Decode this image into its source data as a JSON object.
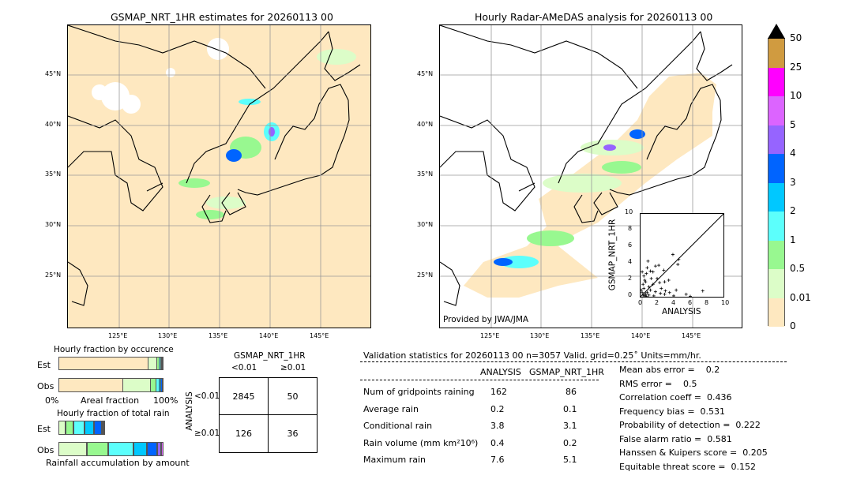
{
  "left_map": {
    "title": "GSMAP_NRT_1HR estimates for 20260113 00",
    "lat_labels": [
      "45°N",
      "40°N",
      "35°N",
      "30°N",
      "25°N"
    ],
    "lon_labels": [
      "125°E",
      "130°E",
      "135°E",
      "140°E",
      "145°E"
    ]
  },
  "right_map": {
    "title": "Hourly Radar-AMeDAS analysis for 20260113 00",
    "lat_labels": [
      "45°N",
      "40°N",
      "35°N",
      "30°N",
      "25°N"
    ],
    "lon_labels": [
      "125°E",
      "130°E",
      "135°E",
      "140°E",
      "145°E"
    ],
    "credit": "Provided by JWA/JMA"
  },
  "colorbar": {
    "labels": [
      "0",
      "0.01",
      "0.5",
      "1",
      "2",
      "3",
      "4",
      "5",
      "10",
      "25",
      "50"
    ],
    "colors": [
      "#fee8c0",
      "#dcfdc8",
      "#98f890",
      "#5cfffc",
      "#00c8ff",
      "#0064ff",
      "#9664ff",
      "#dc64ff",
      "#ff00ff",
      "#d09b40"
    ]
  },
  "chart_data": [
    {
      "type": "scatter",
      "xlabel": "ANALYSIS",
      "ylabel": "GSMAP_NRT_1HR",
      "xlim": [
        0,
        10
      ],
      "ylim": [
        0,
        10
      ],
      "xticks": [
        "0",
        "2",
        "4",
        "6",
        "8",
        "10"
      ],
      "yticks": [
        "0",
        "2",
        "4",
        "6",
        "8",
        "10"
      ],
      "points": [
        [
          0.3,
          0.2
        ],
        [
          0.5,
          0.1
        ],
        [
          0.2,
          0.5
        ],
        [
          0.4,
          1.0
        ],
        [
          0.6,
          0.3
        ],
        [
          0.8,
          0.5
        ],
        [
          1.0,
          0.2
        ],
        [
          0.3,
          1.5
        ],
        [
          0.5,
          2.0
        ],
        [
          0.4,
          2.5
        ],
        [
          0.7,
          2.8
        ],
        [
          0.9,
          4.3
        ],
        [
          0.8,
          3.5
        ],
        [
          1.2,
          3.1
        ],
        [
          1.5,
          3.0
        ],
        [
          1.8,
          3.7
        ],
        [
          2.2,
          3.8
        ],
        [
          2.8,
          3.2
        ],
        [
          2.0,
          2.2
        ],
        [
          1.5,
          1.5
        ],
        [
          2.5,
          1.0
        ],
        [
          3.0,
          0.7
        ],
        [
          3.5,
          0.5
        ],
        [
          4.3,
          0.8
        ],
        [
          5.5,
          0.3
        ],
        [
          7.5,
          0.7
        ],
        [
          3.9,
          5.1
        ],
        [
          4.6,
          4.5
        ],
        [
          4.5,
          3.9
        ],
        [
          2.9,
          1.8
        ],
        [
          3.4,
          2.0
        ],
        [
          1.2,
          0.8
        ],
        [
          1.8,
          0.6
        ],
        [
          2.4,
          0.4
        ],
        [
          0.2,
          3.0
        ],
        [
          0.6,
          1.8
        ],
        [
          1.0,
          1.2
        ],
        [
          0.1,
          0.8
        ],
        [
          1.3,
          2.2
        ],
        [
          2.3,
          1.7
        ],
        [
          4.0,
          0.1
        ],
        [
          6.0,
          0.05
        ],
        [
          0.7,
          0.05
        ],
        [
          1.6,
          0.1
        ],
        [
          2.9,
          0.3
        ]
      ]
    },
    {
      "type": "bar",
      "title": "Hourly fraction by occurence",
      "xlabel": "Areal fraction",
      "xticks": [
        "0%",
        "100%"
      ],
      "categories": [
        "Est",
        "Obs"
      ],
      "series_colors": [
        "#fee8c0",
        "#dcfdc8",
        "#98f890",
        "#5cfffc",
        "#00c8ff",
        "#0064ff"
      ],
      "values": {
        "Est": [
          0.865,
          0.085,
          0.02,
          0.012,
          0.01,
          0.008
        ],
        "Obs": [
          0.617,
          0.27,
          0.055,
          0.03,
          0.015,
          0.013
        ]
      }
    },
    {
      "type": "bar",
      "title": "Hourly fraction of total rain",
      "xlabel": "Rainfall accumulation by amount",
      "categories": [
        "Est",
        "Obs"
      ],
      "series_colors": [
        "#dcfdc8",
        "#98f890",
        "#5cfffc",
        "#00c8ff",
        "#0064ff",
        "#9664ff",
        "#dc64ff"
      ],
      "values": {
        "Est": [
          0.068,
          0.075,
          0.105,
          0.09,
          0.075,
          0.015,
          0.005
        ],
        "Obs": [
          0.27,
          0.203,
          0.24,
          0.128,
          0.098,
          0.038,
          0.023
        ]
      }
    }
  ],
  "contingency": {
    "title": "GSMAP_NRT_1HR",
    "col_labels": [
      "<0.01",
      "≥0.01"
    ],
    "row_title": "ANALYSIS",
    "row_labels": [
      "<0.01",
      "≥0.01"
    ],
    "cells": [
      [
        "2845",
        "50"
      ],
      [
        "126",
        "36"
      ]
    ]
  },
  "stats": {
    "header": "Validation statistics for 20260113 00  n=3057 Valid. grid=0.25˚ Units=mm/hr.",
    "col_headers": [
      "ANALYSIS",
      "GSMAP_NRT_1HR"
    ],
    "rows": [
      {
        "label": "Num of gridpoints raining",
        "analysis": "162",
        "gsmap": "86"
      },
      {
        "label": "Average rain",
        "analysis": "0.2",
        "gsmap": "0.1"
      },
      {
        "label": "Conditional rain",
        "analysis": "3.8",
        "gsmap": "3.1"
      },
      {
        "label": "Rain volume (mm km²10⁶)",
        "analysis": "0.4",
        "gsmap": "0.2"
      },
      {
        "label": "Maximum rain",
        "analysis": "7.6",
        "gsmap": "5.1"
      }
    ],
    "scores": [
      "Mean abs error =    0.2",
      "RMS error =    0.5",
      "Correlation coeff =  0.436",
      "Frequency bias =  0.531",
      "Probability of detection =  0.222",
      "False alarm ratio =  0.581",
      "Hanssen & Kuipers score =  0.205",
      "Equitable threat score =  0.152"
    ]
  }
}
